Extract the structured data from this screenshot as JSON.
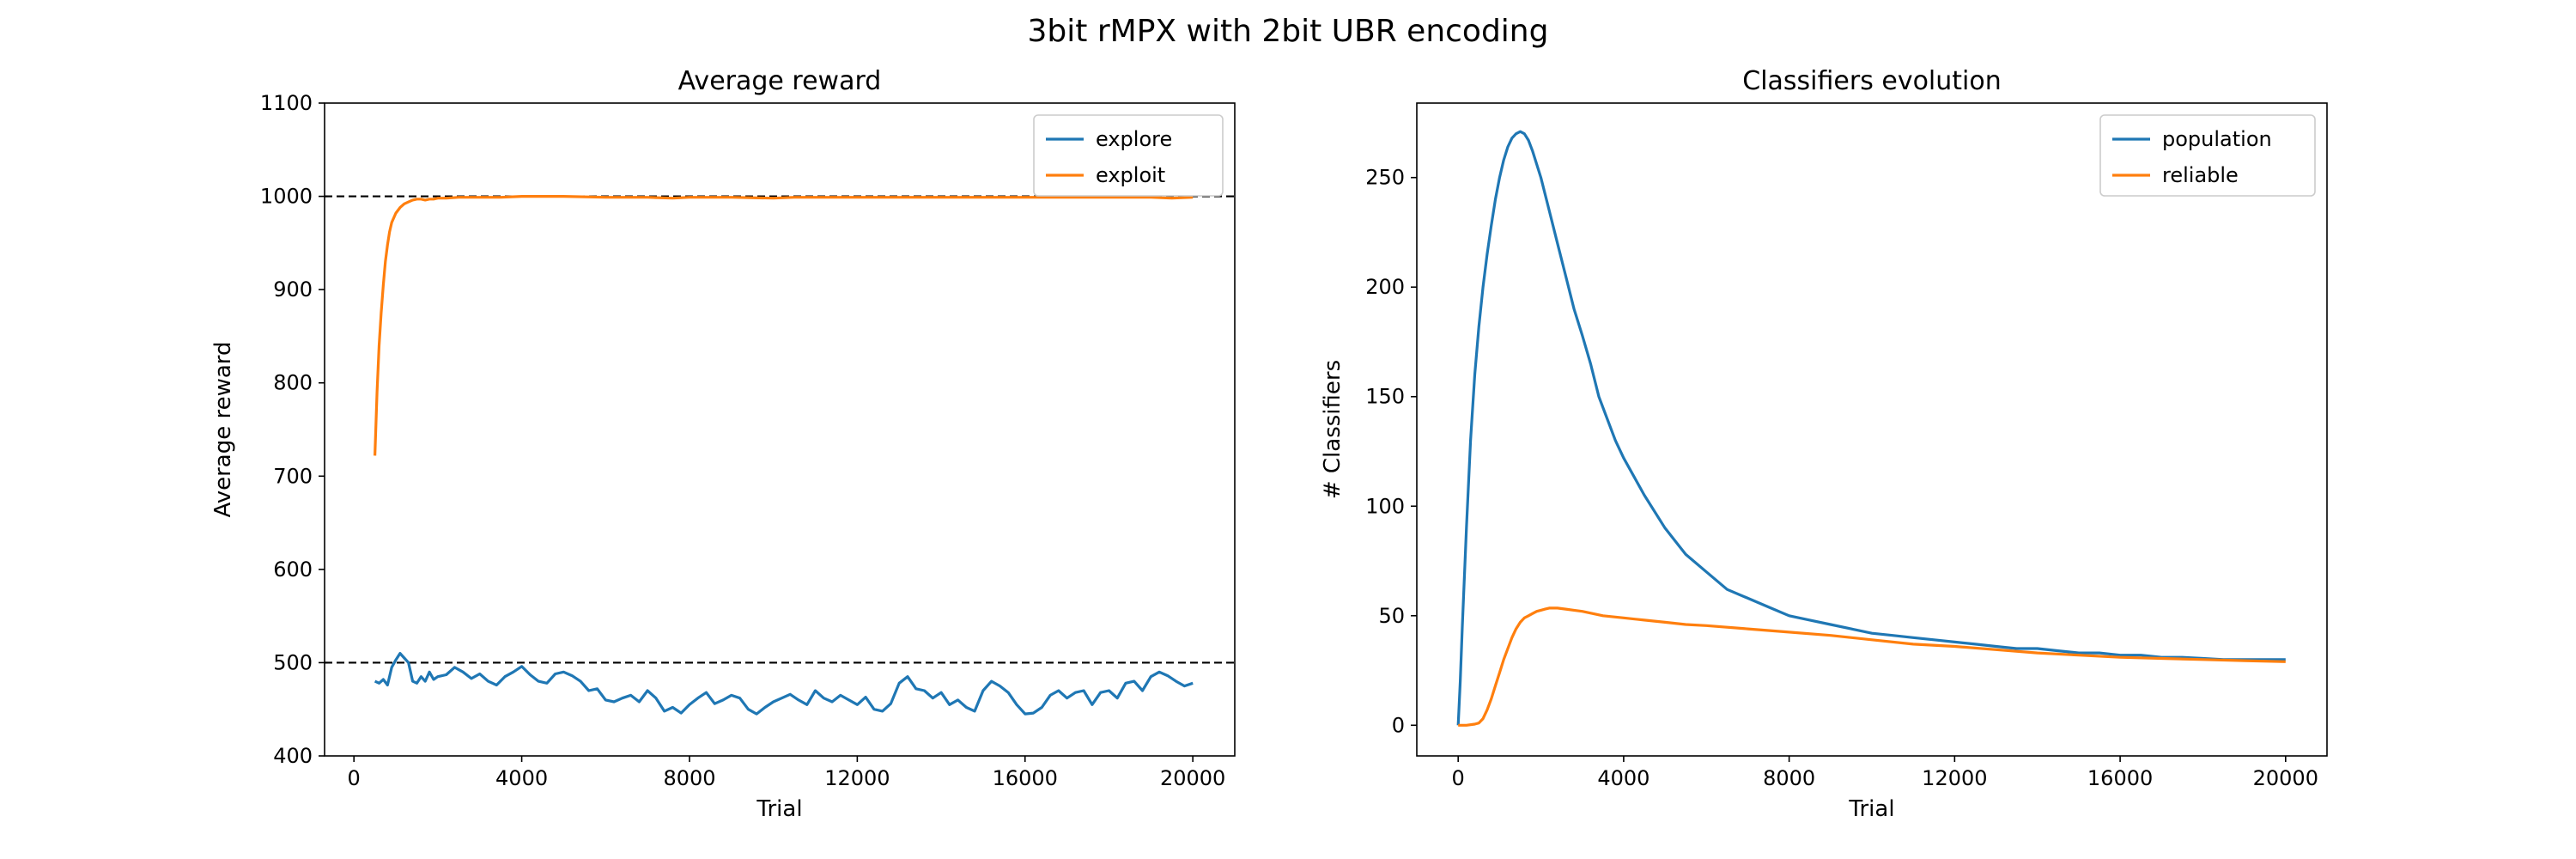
{
  "suptitle": "3bit rMPX with 2bit UBR encoding",
  "colors": {
    "blue": "#1f77b4",
    "orange": "#ff7f0e",
    "reference_line": "#000000"
  },
  "chart_data": [
    {
      "type": "line",
      "title": "Average reward",
      "xlabel": "Trial",
      "ylabel": "Average reward",
      "xlim": [
        -700,
        21000
      ],
      "ylim": [
        400,
        1100
      ],
      "xticks": [
        0,
        4000,
        8000,
        12000,
        16000,
        20000
      ],
      "xtick_labels": [
        "0",
        "4000",
        "8000",
        "12000",
        "16000",
        "20000"
      ],
      "yticks": [
        400,
        500,
        600,
        700,
        800,
        900,
        1000,
        1100
      ],
      "ytick_labels": [
        "400",
        "500",
        "600",
        "700",
        "800",
        "900",
        "1000",
        "1100"
      ],
      "grid": false,
      "legend_position": "top-right",
      "reference_lines": [
        {
          "orientation": "horizontal",
          "y": 1000,
          "style": "dashed"
        },
        {
          "orientation": "horizontal",
          "y": 500,
          "style": "dashed"
        }
      ],
      "series": [
        {
          "name": "explore",
          "color": "#1f77b4",
          "x": [
            500,
            600,
            700,
            800,
            900,
            1000,
            1100,
            1200,
            1300,
            1400,
            1500,
            1600,
            1700,
            1800,
            1900,
            2000,
            2200,
            2400,
            2600,
            2800,
            3000,
            3200,
            3400,
            3600,
            3800,
            4000,
            4200,
            4400,
            4600,
            4800,
            5000,
            5200,
            5400,
            5600,
            5800,
            6000,
            6200,
            6400,
            6600,
            6800,
            7000,
            7200,
            7400,
            7600,
            7800,
            8000,
            8200,
            8400,
            8600,
            8800,
            9000,
            9200,
            9400,
            9600,
            9800,
            10000,
            10200,
            10400,
            10600,
            10800,
            11000,
            11200,
            11400,
            11600,
            11800,
            12000,
            12200,
            12400,
            12600,
            12800,
            13000,
            13200,
            13400,
            13600,
            13800,
            14000,
            14200,
            14400,
            14600,
            14800,
            15000,
            15200,
            15400,
            15600,
            15800,
            16000,
            16200,
            16400,
            16600,
            16800,
            17000,
            17200,
            17400,
            17600,
            17800,
            18000,
            18200,
            18400,
            18600,
            18800,
            19000,
            19200,
            19400,
            19600,
            19800,
            20000
          ],
          "y": [
            480,
            478,
            482,
            476,
            495,
            503,
            510,
            505,
            500,
            480,
            478,
            485,
            480,
            490,
            482,
            485,
            487,
            495,
            490,
            483,
            488,
            480,
            476,
            485,
            490,
            496,
            487,
            480,
            478,
            488,
            490,
            486,
            480,
            470,
            472,
            460,
            458,
            462,
            465,
            458,
            470,
            462,
            448,
            452,
            446,
            455,
            462,
            468,
            456,
            460,
            465,
            462,
            450,
            445,
            452,
            458,
            462,
            466,
            460,
            455,
            470,
            462,
            458,
            465,
            460,
            455,
            463,
            450,
            448,
            456,
            478,
            485,
            472,
            470,
            462,
            468,
            455,
            460,
            452,
            448,
            470,
            480,
            475,
            468,
            455,
            445,
            446,
            452,
            465,
            470,
            462,
            468,
            470,
            455,
            468,
            470,
            462,
            478,
            480,
            470,
            485,
            490,
            486,
            480,
            475,
            478
          ]
        },
        {
          "name": "exploit",
          "color": "#ff7f0e",
          "x": [
            500,
            550,
            600,
            650,
            700,
            750,
            800,
            850,
            900,
            1000,
            1100,
            1200,
            1300,
            1400,
            1500,
            1600,
            1700,
            1800,
            1900,
            2000,
            2200,
            2500,
            3000,
            3500,
            4000,
            5000,
            6000,
            7000,
            7600,
            8000,
            9000,
            10000,
            10500,
            11000,
            12000,
            13000,
            14000,
            15000,
            16000,
            17000,
            18000,
            19000,
            19500,
            20000
          ],
          "y": [
            722,
            790,
            840,
            875,
            905,
            930,
            948,
            962,
            972,
            982,
            988,
            992,
            994,
            996,
            997,
            997,
            996,
            997,
            997,
            998,
            998,
            999,
            999,
            999,
            1000,
            1000,
            999,
            999,
            998,
            999,
            999,
            998,
            999,
            999,
            999,
            999,
            999,
            999,
            999,
            999,
            999,
            999,
            998,
            999
          ]
        }
      ]
    },
    {
      "type": "line",
      "title": "Classifiers evolution",
      "xlabel": "Trial",
      "ylabel": "# Classifiers",
      "xlim": [
        -1000,
        21000
      ],
      "ylim": [
        -14,
        284
      ],
      "xticks": [
        0,
        4000,
        8000,
        12000,
        16000,
        20000
      ],
      "xtick_labels": [
        "0",
        "4000",
        "8000",
        "12000",
        "16000",
        "20000"
      ],
      "yticks": [
        0,
        50,
        100,
        150,
        200,
        250
      ],
      "ytick_labels": [
        "0",
        "50",
        "100",
        "150",
        "200",
        "250"
      ],
      "grid": false,
      "legend_position": "top-right",
      "series": [
        {
          "name": "population",
          "color": "#1f77b4",
          "x": [
            0,
            50,
            100,
            200,
            300,
            400,
            500,
            600,
            700,
            800,
            900,
            1000,
            1100,
            1200,
            1300,
            1400,
            1500,
            1600,
            1700,
            1800,
            2000,
            2200,
            2400,
            2600,
            2800,
            3000,
            3200,
            3400,
            3600,
            3800,
            4000,
            4500,
            5000,
            5500,
            6000,
            6500,
            7000,
            7500,
            8000,
            8500,
            9000,
            9500,
            10000,
            10500,
            11000,
            11500,
            12000,
            12500,
            13000,
            13500,
            14000,
            14500,
            15000,
            15500,
            16000,
            16500,
            17000,
            17500,
            18000,
            18500,
            19000,
            19500,
            20000
          ],
          "y": [
            0,
            20,
            45,
            90,
            130,
            160,
            182,
            200,
            215,
            228,
            240,
            250,
            258,
            264,
            268,
            270,
            271,
            270,
            267,
            262,
            250,
            235,
            220,
            205,
            190,
            178,
            165,
            150,
            140,
            130,
            122,
            105,
            90,
            78,
            70,
            62,
            58,
            54,
            50,
            48,
            46,
            44,
            42,
            41,
            40,
            39,
            38,
            37,
            36,
            35,
            35,
            34,
            33,
            33,
            32,
            32,
            31,
            31,
            30.5,
            30,
            30,
            30,
            30
          ]
        },
        {
          "name": "reliable",
          "color": "#ff7f0e",
          "x": [
            0,
            200,
            400,
            500,
            600,
            700,
            800,
            900,
            1000,
            1100,
            1200,
            1300,
            1400,
            1500,
            1600,
            1700,
            1800,
            1900,
            2000,
            2100,
            2200,
            2300,
            2400,
            2600,
            2800,
            3000,
            3500,
            4000,
            4500,
            5000,
            5500,
            6000,
            7000,
            8000,
            9000,
            10000,
            11000,
            12000,
            13000,
            14000,
            15000,
            16000,
            17000,
            18000,
            19000,
            20000
          ],
          "y": [
            0,
            0,
            0.5,
            1,
            3,
            7,
            12,
            18,
            24,
            30,
            35,
            40,
            44,
            47,
            49,
            50,
            51,
            52,
            52.5,
            53,
            53.5,
            53.5,
            53.5,
            53,
            52.5,
            52,
            50,
            49,
            48,
            47,
            46,
            45.5,
            44,
            42.5,
            41,
            39,
            37,
            36,
            34.5,
            33,
            32,
            31,
            30.5,
            30,
            29.5,
            29
          ]
        }
      ]
    }
  ]
}
